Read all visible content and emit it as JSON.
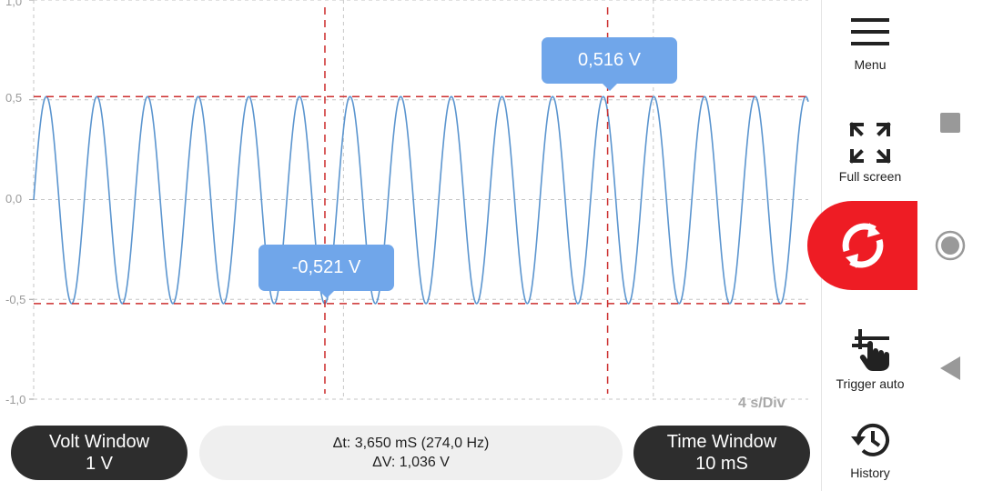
{
  "y_axis": {
    "ticks": [
      "1,0",
      "0,5",
      "0,0",
      "-0,5",
      "-1,0"
    ]
  },
  "chart_data": {
    "type": "line",
    "ylim": [
      -1.0,
      1.0
    ],
    "yticks": [
      1.0,
      0.5,
      0.0,
      -0.5,
      -1.0
    ],
    "series": [
      {
        "amplitude": 0.516,
        "trough": -0.521,
        "cycles_shown": 15.3,
        "color": "#5b95cf"
      }
    ],
    "cursors": {
      "horizontal_levels": [
        0.516,
        -0.521
      ],
      "vertical_time_fraction": [
        0.376,
        0.741
      ],
      "color": "#cc2e2e"
    },
    "grid": true
  },
  "markers": {
    "upper": "0,516 V",
    "lower": "-0,521 V"
  },
  "time_div": "4 s/Div",
  "volt_window": {
    "title": "Volt Window",
    "value": "1 V"
  },
  "measurement": {
    "dt": "Δt: 3,650 mS (274,0 Hz)",
    "dv": "ΔV: 1,036 V"
  },
  "time_window": {
    "title": "Time Window",
    "value": "10 mS"
  },
  "sidebar": {
    "menu": "Menu",
    "full_screen": "Full screen",
    "trigger": "Trigger auto",
    "history": "History"
  },
  "colors": {
    "start_button": "#ee1c24",
    "marker": "#70a6ea",
    "pill": "#2d2d2d"
  },
  "icons": [
    "hamburger-icon",
    "fullscreen-icon",
    "refresh-icon",
    "trigger-hand-icon",
    "history-icon",
    "stop-square-icon",
    "home-circle-icon",
    "back-triangle-icon"
  ]
}
